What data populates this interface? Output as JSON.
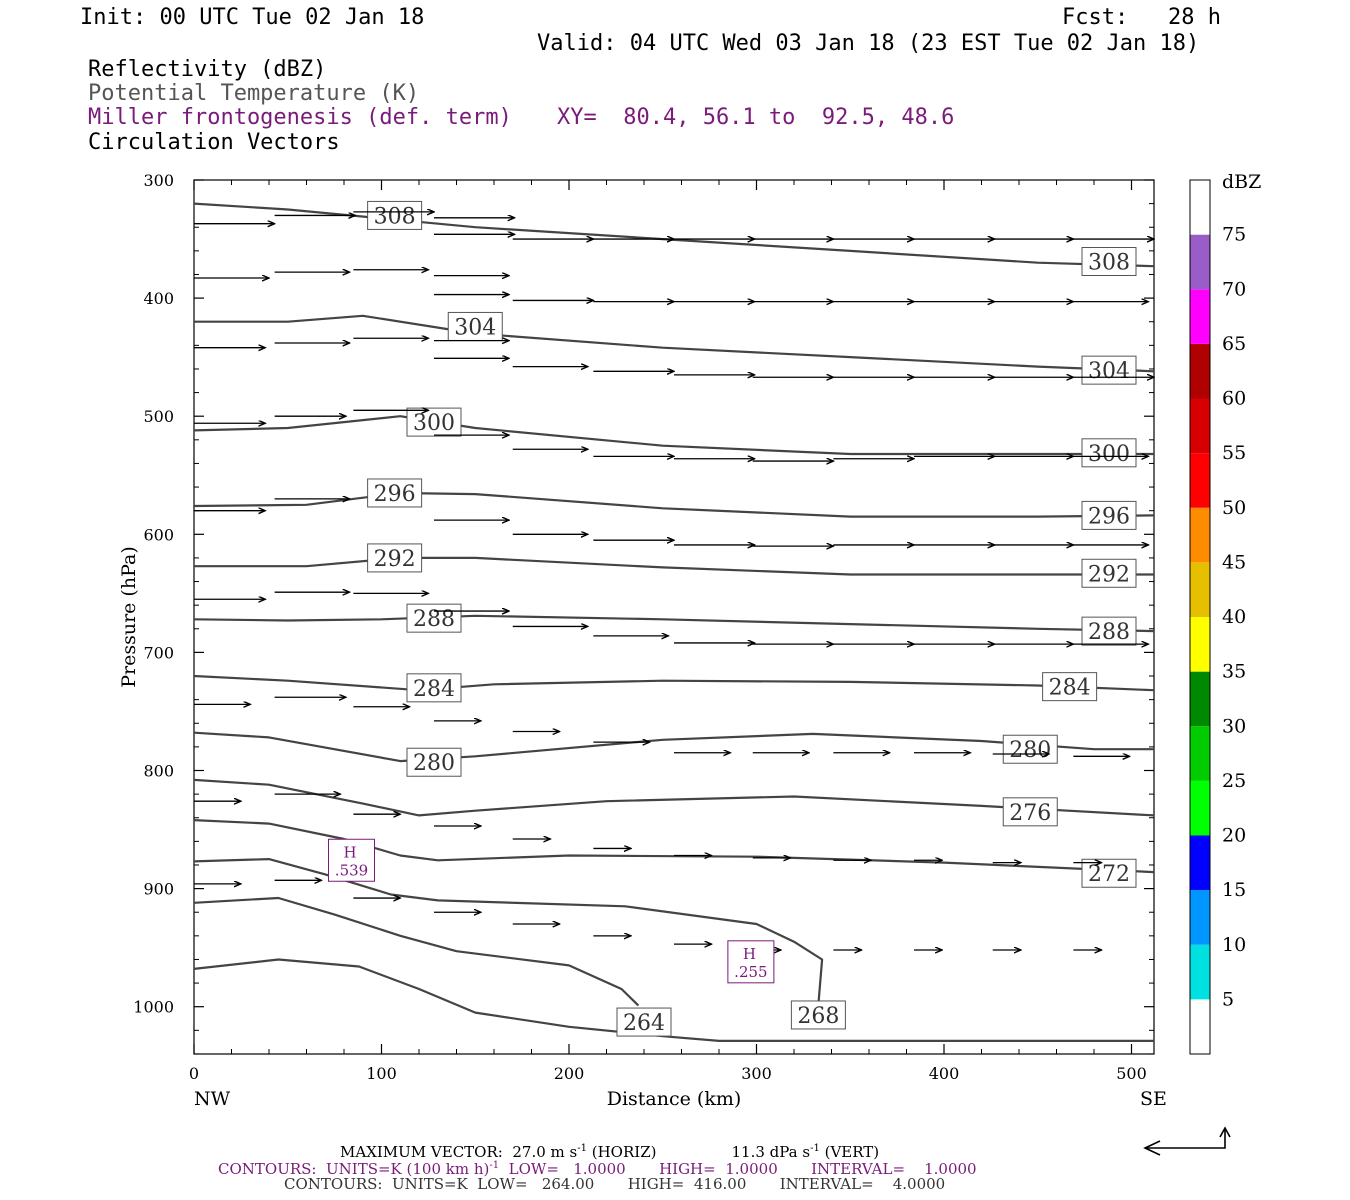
{
  "header": {
    "init": "Init: 00 UTC Tue 02 Jan 18",
    "fcst": "Fcst:   28 h",
    "valid": "Valid: 04 UTC Wed 03 Jan 18 (23 EST Tue 02 Jan 18)",
    "fields": [
      {
        "label": "Reflectivity (dBZ)",
        "color": "#000000"
      },
      {
        "label": "Potential Temperature (K)",
        "color": "#555555"
      },
      {
        "label": "Miller frontogenesis (def. term)",
        "color": "#7a1a7a"
      },
      {
        "label": "Circulation Vectors",
        "color": "#000000"
      }
    ],
    "xy": "XY=  80.4, 56.1 to  92.5, 48.6"
  },
  "footer": {
    "max_vector": "MAXIMUM VECTOR:  27.0 m s",
    "max_vector_sup": "-1",
    "max_vector_horiz": " (HORIZ)",
    "max_vector_vert": "11.3 dPa s",
    "max_vector_vert_sup": "-1",
    "max_vector_vert_tail": " (VERT)",
    "contours1_a": "CONTOURS:  UNITS=K (100 km h)",
    "contours1_sup": "-1",
    "contours1_b": "  LOW=   1.0000       HIGH=  1.0000       INTERVAL=    1.0000",
    "contours2": "CONTOURS:  UNITS=K  LOW=   264.00       HIGH=  416.00       INTERVAL=    4.0000"
  },
  "chart_data": {
    "type": "line",
    "title": "",
    "xlabel": "Distance (km)",
    "ylabel": "Pressure (hPa)",
    "xlim": [
      0,
      512
    ],
    "ylim": [
      300,
      1040
    ],
    "x_ticks": [
      0,
      100,
      200,
      300,
      400,
      500
    ],
    "y_ticks": [
      300,
      400,
      500,
      600,
      700,
      800,
      900,
      1000
    ],
    "x_end_labels": {
      "left": "NW",
      "right": "SE"
    },
    "contour_color": "#444444",
    "isentropes": [
      {
        "value": "308",
        "label_at": [
          [
            107,
            330
          ],
          [
            488,
            369
          ]
        ],
        "points": [
          [
            0,
            320
          ],
          [
            50,
            325
          ],
          [
            150,
            340
          ],
          [
            250,
            350
          ],
          [
            350,
            360
          ],
          [
            450,
            370
          ],
          [
            512,
            373
          ]
        ]
      },
      {
        "value": "304",
        "label_at": [
          [
            150,
            424
          ],
          [
            488,
            461
          ]
        ],
        "points": [
          [
            0,
            420
          ],
          [
            50,
            420
          ],
          [
            90,
            415
          ],
          [
            150,
            430
          ],
          [
            250,
            442
          ],
          [
            350,
            450
          ],
          [
            450,
            458
          ],
          [
            512,
            462
          ]
        ]
      },
      {
        "value": "300",
        "label_at": [
          [
            128,
            505
          ],
          [
            488,
            531
          ]
        ],
        "points": [
          [
            0,
            512
          ],
          [
            50,
            510
          ],
          [
            110,
            500
          ],
          [
            150,
            510
          ],
          [
            250,
            525
          ],
          [
            350,
            532
          ],
          [
            450,
            532
          ],
          [
            512,
            532
          ]
        ]
      },
      {
        "value": "296",
        "label_at": [
          [
            107,
            565
          ],
          [
            488,
            584
          ]
        ],
        "points": [
          [
            0,
            576
          ],
          [
            60,
            575
          ],
          [
            110,
            565
          ],
          [
            150,
            566
          ],
          [
            250,
            578
          ],
          [
            350,
            585
          ],
          [
            450,
            585
          ],
          [
            512,
            584
          ]
        ]
      },
      {
        "value": "292",
        "label_at": [
          [
            107,
            620
          ],
          [
            488,
            633
          ]
        ],
        "points": [
          [
            0,
            627
          ],
          [
            60,
            627
          ],
          [
            110,
            620
          ],
          [
            150,
            620
          ],
          [
            250,
            628
          ],
          [
            350,
            634
          ],
          [
            450,
            634
          ],
          [
            512,
            634
          ]
        ]
      },
      {
        "value": "288",
        "label_at": [
          [
            128,
            671
          ],
          [
            488,
            682
          ]
        ],
        "points": [
          [
            0,
            672
          ],
          [
            50,
            673
          ],
          [
            100,
            672
          ],
          [
            150,
            669
          ],
          [
            250,
            672
          ],
          [
            350,
            676
          ],
          [
            450,
            680
          ],
          [
            512,
            682
          ]
        ]
      },
      {
        "value": "284",
        "label_at": [
          [
            128,
            730
          ],
          [
            467,
            729
          ]
        ],
        "points": [
          [
            0,
            720
          ],
          [
            50,
            724
          ],
          [
            120,
            732
          ],
          [
            160,
            727
          ],
          [
            250,
            724
          ],
          [
            350,
            725
          ],
          [
            450,
            728
          ],
          [
            512,
            732
          ]
        ]
      },
      {
        "value": "280",
        "label_at": [
          [
            128,
            793
          ],
          [
            446,
            782
          ]
        ],
        "points": [
          [
            0,
            768
          ],
          [
            40,
            772
          ],
          [
            110,
            792
          ],
          [
            150,
            788
          ],
          [
            250,
            774
          ],
          [
            330,
            769
          ],
          [
            420,
            775
          ],
          [
            480,
            782
          ],
          [
            512,
            782
          ]
        ]
      },
      {
        "value": "276",
        "label_at": [
          [
            446,
            835
          ]
        ],
        "points": [
          [
            0,
            808
          ],
          [
            40,
            812
          ],
          [
            90,
            828
          ],
          [
            120,
            838
          ],
          [
            150,
            834
          ],
          [
            220,
            826
          ],
          [
            320,
            822
          ],
          [
            420,
            830
          ],
          [
            512,
            838
          ]
        ]
      },
      {
        "value": "272",
        "label_at": [
          [
            488,
            887
          ]
        ],
        "points": [
          [
            0,
            842
          ],
          [
            40,
            845
          ],
          [
            80,
            858
          ],
          [
            110,
            872
          ],
          [
            130,
            876
          ],
          [
            200,
            872
          ],
          [
            300,
            873
          ],
          [
            400,
            878
          ],
          [
            512,
            886
          ]
        ]
      },
      {
        "value": "268",
        "label_at": [
          [
            333,
            1007
          ]
        ],
        "points": [
          [
            0,
            877
          ],
          [
            40,
            875
          ],
          [
            70,
            888
          ],
          [
            105,
            905
          ],
          [
            130,
            910
          ],
          [
            230,
            915
          ],
          [
            300,
            930
          ],
          [
            320,
            945
          ],
          [
            335,
            960
          ],
          [
            333,
            998
          ]
        ]
      },
      {
        "value": "264",
        "label_at": [
          [
            240,
            1013
          ]
        ],
        "points": [
          [
            0,
            912
          ],
          [
            45,
            908
          ],
          [
            75,
            922
          ],
          [
            110,
            940
          ],
          [
            140,
            953
          ],
          [
            200,
            965
          ],
          [
            228,
            985
          ],
          [
            237,
            999
          ]
        ]
      },
      {
        "value": "",
        "label_at": [],
        "points": [
          [
            0,
            968
          ],
          [
            45,
            960
          ],
          [
            88,
            966
          ],
          [
            120,
            985
          ],
          [
            150,
            1005
          ],
          [
            200,
            1017
          ],
          [
            250,
            1025
          ],
          [
            280,
            1029
          ],
          [
            350,
            1029
          ],
          [
            450,
            1029
          ],
          [
            512,
            1029
          ]
        ]
      }
    ],
    "frontogenesis_maxima": [
      {
        "label": "H",
        "value": ".539",
        "at": [
          84,
          876
        ]
      },
      {
        "label": "H",
        "value": ".255",
        "at": [
          297,
          962
        ]
      }
    ],
    "circulation_vectors": [
      [
        0,
        337,
        43,
        0
      ],
      [
        43,
        330,
        43,
        0
      ],
      [
        85,
        327,
        43,
        0
      ],
      [
        128,
        332,
        43,
        0
      ],
      [
        128,
        346,
        43,
        0
      ],
      [
        170,
        350,
        43,
        0
      ],
      [
        213,
        350,
        43,
        0
      ],
      [
        256,
        350,
        43,
        0
      ],
      [
        298,
        350,
        43,
        0
      ],
      [
        341,
        350,
        43,
        0
      ],
      [
        384,
        350,
        43,
        0
      ],
      [
        426,
        350,
        43,
        0
      ],
      [
        469,
        350,
        43,
        0
      ],
      [
        0,
        383,
        40,
        0
      ],
      [
        43,
        378,
        40,
        0
      ],
      [
        85,
        376,
        40,
        0
      ],
      [
        128,
        381,
        40,
        0
      ],
      [
        128,
        397,
        40,
        0
      ],
      [
        170,
        402,
        43,
        0
      ],
      [
        213,
        403,
        43,
        0
      ],
      [
        256,
        403,
        43,
        0
      ],
      [
        298,
        403,
        43,
        0
      ],
      [
        341,
        403,
        43,
        0
      ],
      [
        384,
        403,
        43,
        0
      ],
      [
        426,
        403,
        43,
        0
      ],
      [
        469,
        403,
        40,
        0
      ],
      [
        0,
        442,
        38,
        0
      ],
      [
        43,
        438,
        40,
        0
      ],
      [
        85,
        434,
        40,
        0
      ],
      [
        128,
        436,
        40,
        0
      ],
      [
        128,
        451,
        40,
        0
      ],
      [
        170,
        458,
        40,
        0
      ],
      [
        213,
        462,
        43,
        0
      ],
      [
        256,
        465,
        43,
        0
      ],
      [
        298,
        467,
        43,
        0
      ],
      [
        341,
        467,
        43,
        0
      ],
      [
        384,
        467,
        43,
        0
      ],
      [
        426,
        467,
        43,
        0
      ],
      [
        469,
        467,
        43,
        0
      ],
      [
        0,
        506,
        38,
        0
      ],
      [
        43,
        500,
        38,
        0
      ],
      [
        85,
        495,
        40,
        0
      ],
      [
        128,
        516,
        40,
        0
      ],
      [
        170,
        528,
        40,
        0
      ],
      [
        213,
        534,
        43,
        0
      ],
      [
        256,
        536,
        43,
        0
      ],
      [
        298,
        538,
        43,
        0
      ],
      [
        341,
        536,
        43,
        0
      ],
      [
        384,
        534,
        43,
        0
      ],
      [
        426,
        534,
        43,
        0
      ],
      [
        469,
        534,
        40,
        0
      ],
      [
        0,
        580,
        38,
        0
      ],
      [
        43,
        570,
        40,
        0
      ],
      [
        128,
        588,
        40,
        0
      ],
      [
        170,
        600,
        40,
        0
      ],
      [
        213,
        605,
        43,
        0
      ],
      [
        256,
        609,
        43,
        0
      ],
      [
        298,
        610,
        43,
        0
      ],
      [
        341,
        609,
        43,
        0
      ],
      [
        384,
        609,
        43,
        0
      ],
      [
        426,
        609,
        43,
        0
      ],
      [
        469,
        609,
        40,
        0
      ],
      [
        0,
        655,
        38,
        0
      ],
      [
        43,
        649,
        40,
        0
      ],
      [
        85,
        650,
        40,
        0
      ],
      [
        128,
        665,
        40,
        0
      ],
      [
        170,
        678,
        40,
        0
      ],
      [
        213,
        686,
        40,
        0
      ],
      [
        256,
        692,
        43,
        0
      ],
      [
        298,
        693,
        43,
        0
      ],
      [
        341,
        693,
        43,
        0
      ],
      [
        384,
        693,
        43,
        0
      ],
      [
        426,
        693,
        43,
        0
      ],
      [
        469,
        693,
        40,
        0
      ],
      [
        0,
        744,
        30,
        0
      ],
      [
        43,
        738,
        38,
        0
      ],
      [
        85,
        746,
        30,
        0
      ],
      [
        128,
        758,
        25,
        0
      ],
      [
        170,
        767,
        25,
        0
      ],
      [
        213,
        776,
        30,
        0
      ],
      [
        256,
        785,
        30,
        0
      ],
      [
        298,
        785,
        30,
        0
      ],
      [
        341,
        785,
        30,
        0
      ],
      [
        384,
        785,
        30,
        0
      ],
      [
        426,
        786,
        30,
        0
      ],
      [
        469,
        788,
        30,
        0
      ],
      [
        0,
        826,
        25,
        0
      ],
      [
        43,
        820,
        35,
        0
      ],
      [
        85,
        837,
        25,
        0
      ],
      [
        128,
        847,
        25,
        0
      ],
      [
        170,
        858,
        20,
        0
      ],
      [
        213,
        866,
        20,
        0
      ],
      [
        256,
        872,
        20,
        0
      ],
      [
        298,
        874,
        20,
        0
      ],
      [
        341,
        876,
        20,
        0
      ],
      [
        384,
        876,
        15,
        0
      ],
      [
        426,
        878,
        15,
        0
      ],
      [
        469,
        878,
        15,
        0
      ],
      [
        0,
        896,
        25,
        0
      ],
      [
        43,
        893,
        25,
        0
      ],
      [
        85,
        908,
        25,
        0
      ],
      [
        128,
        920,
        25,
        0
      ],
      [
        170,
        930,
        25,
        0
      ],
      [
        213,
        940,
        20,
        0
      ],
      [
        256,
        947,
        20,
        0
      ],
      [
        298,
        952,
        15,
        0
      ],
      [
        341,
        952,
        15,
        0
      ],
      [
        384,
        952,
        15,
        0
      ],
      [
        426,
        952,
        15,
        0
      ],
      [
        469,
        952,
        15,
        0
      ]
    ],
    "colorbar": {
      "title": "dBZ",
      "levels": [
        "5",
        "10",
        "15",
        "20",
        "25",
        "30",
        "35",
        "40",
        "45",
        "50",
        "55",
        "60",
        "65",
        "70",
        "75"
      ],
      "colors": [
        "#ffffff",
        "#00e0e0",
        "#0096ff",
        "#0000ff",
        "#00ff00",
        "#00cc00",
        "#008800",
        "#ffff00",
        "#e6c000",
        "#ff8c00",
        "#ff0000",
        "#d60000",
        "#b00000",
        "#ff00ff",
        "#9a5cc6",
        "#ffffff"
      ]
    }
  }
}
